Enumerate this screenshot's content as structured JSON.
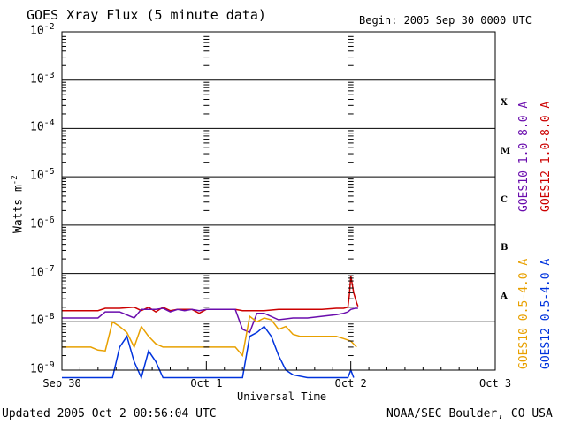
{
  "chart_data": {
    "type": "line",
    "title": "GOES Xray Flux (5 minute data)",
    "begin_label": "Begin:  2005 Sep 30 0000 UTC",
    "ylabel_main": "Watts m",
    "ylabel_sup": "-2",
    "xlabel": "Universal Time",
    "yscale": "log",
    "ylim_exponents": [
      -9,
      -2
    ],
    "xlim_days": [
      0,
      3
    ],
    "x_ticks": [
      {
        "day": 0,
        "label": "Sep 30"
      },
      {
        "day": 1,
        "label": "Oct 1"
      },
      {
        "day": 2,
        "label": "Oct 2"
      },
      {
        "day": 3,
        "label": "Oct 3"
      }
    ],
    "y_ticks": [
      {
        "exp": -2,
        "base": "10",
        "sup": "-2"
      },
      {
        "exp": -3,
        "base": "10",
        "sup": "-3"
      },
      {
        "exp": -4,
        "base": "10",
        "sup": "-4"
      },
      {
        "exp": -5,
        "base": "10",
        "sup": "-5"
      },
      {
        "exp": -6,
        "base": "10",
        "sup": "-6"
      },
      {
        "exp": -7,
        "base": "10",
        "sup": "-7"
      },
      {
        "exp": -8,
        "base": "10",
        "sup": "-8"
      },
      {
        "exp": -9,
        "base": "10",
        "sup": "-9"
      }
    ],
    "flare_classes": [
      {
        "label": "X",
        "exp": -3.5
      },
      {
        "label": "M",
        "exp": -4.5
      },
      {
        "label": "C",
        "exp": -5.5
      },
      {
        "label": "B",
        "exp": -6.5
      },
      {
        "label": "A",
        "exp": -7.5
      }
    ],
    "grid": true,
    "series": [
      {
        "name": "GOES12 1.0-8.0 A",
        "color": "#cc0000",
        "x": [
          0.0,
          0.25,
          0.3,
          0.4,
          0.5,
          0.55,
          0.6,
          0.65,
          0.7,
          0.75,
          0.8,
          0.85,
          0.9,
          0.95,
          1.0,
          1.05,
          1.1,
          1.15,
          1.2,
          1.25,
          1.3,
          1.35,
          1.4,
          1.5,
          1.6,
          1.7,
          1.8,
          1.9,
          1.95,
          1.98,
          1.99,
          2.0,
          2.01,
          2.02,
          2.04,
          2.05
        ],
        "y": [
          1.7e-08,
          1.7e-08,
          1.9e-08,
          1.9e-08,
          2e-08,
          1.7e-08,
          2e-08,
          1.6e-08,
          2e-08,
          1.7e-08,
          1.8e-08,
          1.8e-08,
          1.8e-08,
          1.5e-08,
          1.8e-08,
          1.8e-08,
          1.8e-08,
          1.8e-08,
          1.8e-08,
          1.7e-08,
          1.7e-08,
          1.7e-08,
          1.7e-08,
          1.8e-08,
          1.8e-08,
          1.8e-08,
          1.8e-08,
          1.9e-08,
          1.9e-08,
          2e-08,
          3.5e-08,
          9e-08,
          6e-08,
          4e-08,
          2.5e-08,
          2.1e-08
        ]
      },
      {
        "name": "GOES10 1.0-8.0 A",
        "color": "#6a0dad",
        "x": [
          0.0,
          0.25,
          0.3,
          0.4,
          0.5,
          0.55,
          0.6,
          0.65,
          0.7,
          0.75,
          0.8,
          0.85,
          0.9,
          0.95,
          1.0,
          1.05,
          1.1,
          1.15,
          1.2,
          1.25,
          1.3,
          1.35,
          1.4,
          1.5,
          1.6,
          1.7,
          1.8,
          1.9,
          1.95,
          1.98,
          2.0,
          2.03,
          2.05
        ],
        "y": [
          1.2e-08,
          1.2e-08,
          1.6e-08,
          1.6e-08,
          1.2e-08,
          1.8e-08,
          1.8e-08,
          1.8e-08,
          1.9e-08,
          1.6e-08,
          1.8e-08,
          1.7e-08,
          1.8e-08,
          1.7e-08,
          1.8e-08,
          1.8e-08,
          1.8e-08,
          1.8e-08,
          1.8e-08,
          7e-09,
          6e-09,
          1.5e-08,
          1.5e-08,
          1.1e-08,
          1.2e-08,
          1.2e-08,
          1.3e-08,
          1.4e-08,
          1.5e-08,
          1.6e-08,
          1.8e-08,
          1.9e-08,
          1.9e-08
        ]
      },
      {
        "name": "GOES10 0.5-4.0 A",
        "color": "#e8a000",
        "x": [
          0.0,
          0.2,
          0.25,
          0.3,
          0.35,
          0.4,
          0.45,
          0.5,
          0.55,
          0.6,
          0.65,
          0.7,
          0.8,
          0.9,
          1.0,
          1.1,
          1.15,
          1.2,
          1.25,
          1.3,
          1.35,
          1.4,
          1.45,
          1.5,
          1.55,
          1.6,
          1.65,
          1.7,
          1.8,
          1.9,
          1.95,
          2.0,
          2.04
        ],
        "y": [
          3e-09,
          3e-09,
          2.6e-09,
          2.5e-09,
          1e-08,
          8e-09,
          6e-09,
          3e-09,
          8e-09,
          5e-09,
          3.5e-09,
          3e-09,
          3e-09,
          3e-09,
          3e-09,
          3e-09,
          3e-09,
          3e-09,
          2e-09,
          1.3e-08,
          1e-08,
          1.2e-08,
          1.1e-08,
          7e-09,
          8e-09,
          5.5e-09,
          5e-09,
          5e-09,
          5e-09,
          5e-09,
          4.5e-09,
          4e-09,
          3e-09
        ]
      },
      {
        "name": "GOES12 0.5-4.0 A",
        "color": "#0033dd",
        "x": [
          0.0,
          0.35,
          0.4,
          0.45,
          0.5,
          0.55,
          0.6,
          0.65,
          0.7,
          0.8,
          0.9,
          1.0,
          1.1,
          1.2,
          1.25,
          1.3,
          1.35,
          1.4,
          1.45,
          1.5,
          1.55,
          1.6,
          1.7,
          1.8,
          1.9,
          1.95,
          1.98,
          2.0,
          2.02
        ],
        "y": [
          7e-10,
          7e-10,
          3e-09,
          5e-09,
          1.5e-09,
          7e-10,
          2.5e-09,
          1.5e-09,
          7e-10,
          7e-10,
          7e-10,
          7e-10,
          7e-10,
          7e-10,
          7e-10,
          5e-09,
          6e-09,
          8e-09,
          5e-09,
          2e-09,
          1e-09,
          8e-10,
          7e-10,
          7e-10,
          7e-10,
          7e-10,
          7e-10,
          1e-09,
          7e-10
        ]
      }
    ],
    "legend_placement": "right, vertical",
    "legend_right_text": [
      "GOES10 1.0-8.0 A",
      "GOES12 1.0-8.0 A"
    ],
    "legend_lower_text": [
      "GOES10 0.5-4.0 A",
      "GOES12 0.5-4.0 A"
    ]
  },
  "footer": {
    "updated": "Updated 2005 Oct  2 00:56:04 UTC",
    "credit": "NOAA/SEC Boulder, CO USA"
  }
}
